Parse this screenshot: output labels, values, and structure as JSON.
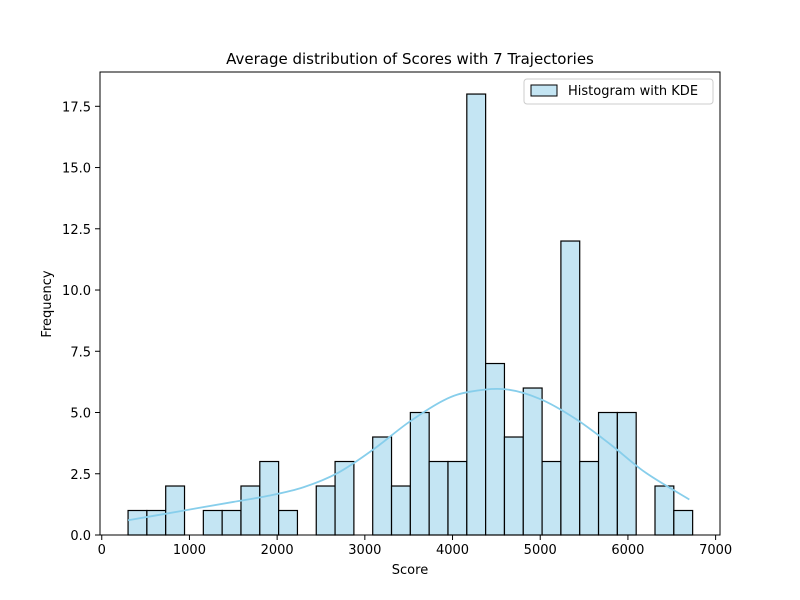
{
  "chart_data": {
    "type": "bar",
    "title": "Average distribution of Scores with 7 Trajectories",
    "xlabel": "Score",
    "ylabel": "Frequency",
    "xlim": [
      -20,
      7050
    ],
    "ylim": [
      0,
      18.9
    ],
    "xticks": [
      0,
      1000,
      2000,
      3000,
      4000,
      5000,
      6000,
      7000
    ],
    "xtick_labels": [
      "0",
      "1000",
      "2000",
      "3000",
      "4000",
      "5000",
      "6000",
      "7000"
    ],
    "yticks": [
      0,
      2.5,
      5,
      7.5,
      10,
      12.5,
      15,
      17.5
    ],
    "ytick_labels": [
      "0.0",
      "2.5",
      "5.0",
      "7.5",
      "10.0",
      "12.5",
      "15.0",
      "17.5"
    ],
    "bin_start": 300,
    "bin_width": 214.6,
    "counts": [
      1,
      1,
      2,
      0,
      1,
      1,
      2,
      3,
      1,
      0,
      2,
      3,
      0,
      4,
      2,
      5,
      3,
      3,
      18,
      7,
      4,
      6,
      3,
      12,
      3,
      5,
      5,
      0,
      2,
      1
    ],
    "kde": {
      "x": [
        300,
        700,
        1100,
        1500,
        1900,
        2300,
        2700,
        3100,
        3500,
        3900,
        4200,
        4600,
        5000,
        5400,
        5800,
        6200,
        6700
      ],
      "y": [
        0.6,
        0.85,
        1.1,
        1.35,
        1.6,
        1.95,
        2.55,
        3.5,
        4.6,
        5.5,
        5.85,
        5.95,
        5.55,
        4.75,
        3.7,
        2.55,
        1.45
      ]
    },
    "legend": {
      "label": "Histogram with KDE",
      "position": "top-right"
    },
    "bar_color": "#c4e5f3",
    "bar_edge_color": "#000000",
    "kde_color": "#87ceeb",
    "grid": false
  }
}
